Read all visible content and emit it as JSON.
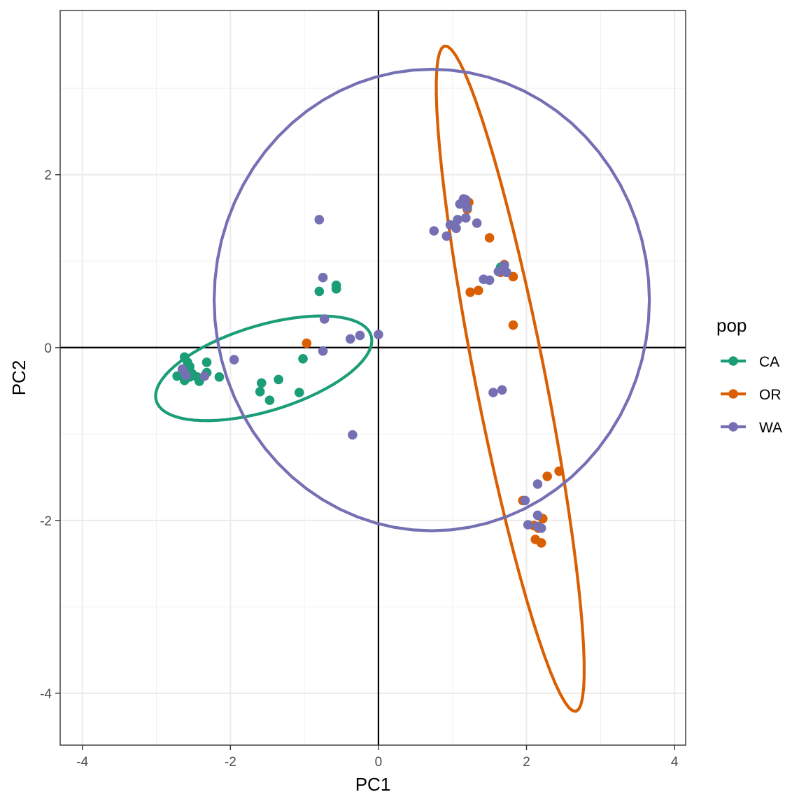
{
  "chart_data": {
    "type": "scatter",
    "xlabel": "PC1",
    "ylabel": "PC2",
    "xlim": [
      -4.3,
      4.15
    ],
    "ylim": [
      -4.6,
      3.9
    ],
    "x_ticks": [
      -4,
      -2,
      0,
      2,
      4
    ],
    "y_ticks": [
      -4,
      -2,
      0,
      2
    ],
    "x_tick_labels": [
      "-4",
      "-2",
      "0",
      "2",
      "4"
    ],
    "y_tick_labels": [
      "-4",
      "-2",
      "0",
      "2"
    ],
    "grid": true,
    "reference_lines": {
      "x": 0,
      "y": 0
    },
    "legend": {
      "title": "pop",
      "position": "right"
    },
    "series": [
      {
        "name": "CA",
        "color": "#1B9E77",
        "points": [
          [
            -2.62,
            -0.11
          ],
          [
            -2.58,
            -0.17
          ],
          [
            -2.55,
            -0.22
          ],
          [
            -2.6,
            -0.26
          ],
          [
            -2.52,
            -0.3
          ],
          [
            -2.65,
            -0.3
          ],
          [
            -2.72,
            -0.33
          ],
          [
            -2.62,
            -0.38
          ],
          [
            -2.55,
            -0.34
          ],
          [
            -2.45,
            -0.34
          ],
          [
            -2.42,
            -0.39
          ],
          [
            -2.32,
            -0.17
          ],
          [
            -2.32,
            -0.29
          ],
          [
            -2.15,
            -0.34
          ],
          [
            -1.58,
            -0.41
          ],
          [
            -1.35,
            -0.37
          ],
          [
            -1.6,
            -0.51
          ],
          [
            -1.47,
            -0.61
          ],
          [
            -1.07,
            -0.52
          ],
          [
            -1.02,
            -0.13
          ],
          [
            -0.8,
            0.65
          ],
          [
            -0.57,
            0.72
          ],
          [
            -0.57,
            0.68
          ],
          [
            1.2,
            1.68
          ],
          [
            1.65,
            0.93
          ]
        ],
        "ellipse": {
          "cx": -1.55,
          "cy": -0.24,
          "rx": 1.5,
          "ry": 0.5,
          "angle_deg": 14
        }
      },
      {
        "name": "OR",
        "color": "#D95F02",
        "points": [
          [
            -0.97,
            0.05
          ],
          [
            1.22,
            1.68
          ],
          [
            1.2,
            1.6
          ],
          [
            1.5,
            1.27
          ],
          [
            1.7,
            0.96
          ],
          [
            1.65,
            0.87
          ],
          [
            1.82,
            0.82
          ],
          [
            1.24,
            0.64
          ],
          [
            1.35,
            0.66
          ],
          [
            1.82,
            0.26
          ],
          [
            1.95,
            -1.77
          ],
          [
            2.28,
            -1.49
          ],
          [
            2.44,
            -1.43
          ],
          [
            2.1,
            -2.06
          ],
          [
            2.16,
            -2.09
          ],
          [
            2.22,
            -1.98
          ],
          [
            2.12,
            -2.22
          ],
          [
            2.2,
            -2.26
          ]
        ],
        "ellipse": {
          "cx": 1.78,
          "cy": -0.36,
          "rx": 3.95,
          "ry": 0.47,
          "angle_deg": -77
        }
      },
      {
        "name": "WA",
        "color": "#7570B3",
        "points": [
          [
            -2.65,
            -0.25
          ],
          [
            -2.6,
            -0.32
          ],
          [
            -2.35,
            -0.33
          ],
          [
            -1.95,
            -0.14
          ],
          [
            -0.8,
            1.48
          ],
          [
            -0.75,
            0.81
          ],
          [
            -0.73,
            0.33
          ],
          [
            -0.75,
            -0.04
          ],
          [
            -0.38,
            0.1
          ],
          [
            -0.25,
            0.14
          ],
          [
            0.0,
            0.15
          ],
          [
            -0.35,
            -1.01
          ],
          [
            0.75,
            1.35
          ],
          [
            0.92,
            1.29
          ],
          [
            0.97,
            1.42
          ],
          [
            1.05,
            1.38
          ],
          [
            1.07,
            1.48
          ],
          [
            1.1,
            1.66
          ],
          [
            1.15,
            1.72
          ],
          [
            1.18,
            1.71
          ],
          [
            1.18,
            1.5
          ],
          [
            1.2,
            1.62
          ],
          [
            1.33,
            1.44
          ],
          [
            1.42,
            0.79
          ],
          [
            1.5,
            0.78
          ],
          [
            1.62,
            0.88
          ],
          [
            1.7,
            0.95
          ],
          [
            1.73,
            0.87
          ],
          [
            1.55,
            -0.52
          ],
          [
            1.67,
            -0.49
          ],
          [
            1.98,
            -1.77
          ],
          [
            2.15,
            -1.58
          ],
          [
            2.15,
            -1.94
          ],
          [
            2.02,
            -2.05
          ],
          [
            2.15,
            -2.07
          ],
          [
            2.2,
            -2.09
          ]
        ],
        "ellipse": {
          "cx": 0.72,
          "cy": 0.55,
          "rx": 2.94,
          "ry": 2.67,
          "angle_deg": 0
        }
      }
    ]
  }
}
